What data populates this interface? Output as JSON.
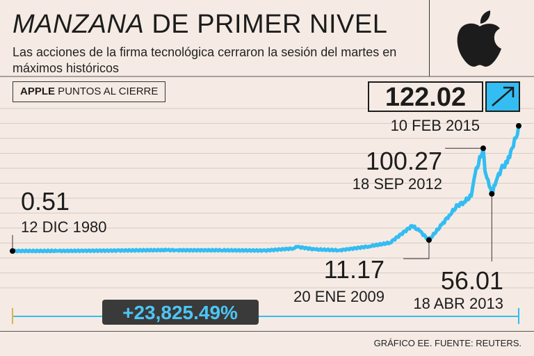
{
  "header": {
    "title_italic": "MANZANA",
    "title_rest": " DE PRIMER NIVEL",
    "subtitle": "Las acciones de la firma tecnológica cerraron la sesión del martes en máximos históricos",
    "badge_bold": "APPLE",
    "badge_rest": " PUNTOS AL CIERRE",
    "logo_icon": "apple-logo-icon"
  },
  "colors": {
    "background": "#f5ebe4",
    "line": "#33bdf2",
    "dark": "#1c1c1c",
    "pill_bg": "#3a3a3a",
    "pill_text": "#4cc6f5",
    "arrow_bg": "#33bdf2"
  },
  "chart_data": {
    "type": "line",
    "title": "MANZANA DE PRIMER NIVEL",
    "series": [
      {
        "x": [
          "1980-12-12",
          "1984-01-01",
          "1988-01-01",
          "1991-06-01",
          "1992-01-01",
          "1995-01-01",
          "1998-01-01",
          "1999-12-01",
          "2000-03-01",
          "2001-06-01",
          "2003-01-01",
          "2005-01-01",
          "2006-06-01",
          "2007-12-01",
          "2008-06-01",
          "2009-01-20",
          "2009-12-01",
          "2010-06-01",
          "2011-01-01",
          "2011-06-01",
          "2011-12-01",
          "2012-03-01",
          "2012-09-18",
          "2012-11-01",
          "2013-01-15",
          "2013-04-18",
          "2013-08-01",
          "2013-12-01",
          "2014-05-01",
          "2014-08-01",
          "2014-12-01",
          "2015-02-10"
        ],
        "y": [
          0.51,
          0.6,
          1.0,
          1.4,
          1.3,
          1.2,
          1.0,
          3.0,
          4.5,
          2.0,
          1.2,
          5.0,
          8.5,
          25.0,
          20.0,
          11.17,
          26.0,
          35.0,
          45.0,
          48.0,
          54.0,
          75.0,
          100.27,
          78.0,
          70.0,
          56.01,
          68.0,
          80.0,
          86.0,
          98.0,
          110.0,
          122.02
        ]
      }
    ],
    "annotations": [
      {
        "value": "0.51",
        "date": "12 DIC 1980"
      },
      {
        "value": "11.17",
        "date": "20 ENE 2009"
      },
      {
        "value": "100.27",
        "date": "18 SEP 2012"
      },
      {
        "value": "56.01",
        "date": "18 ABR 2013"
      },
      {
        "value": "122.02",
        "date": "10 FEB 2015"
      }
    ],
    "change": "+23,825.49%",
    "grid": true,
    "ylim": [
      0,
      135
    ]
  },
  "footer": {
    "credit": "GRÁFICO EE. FUENTE: REUTERS."
  }
}
